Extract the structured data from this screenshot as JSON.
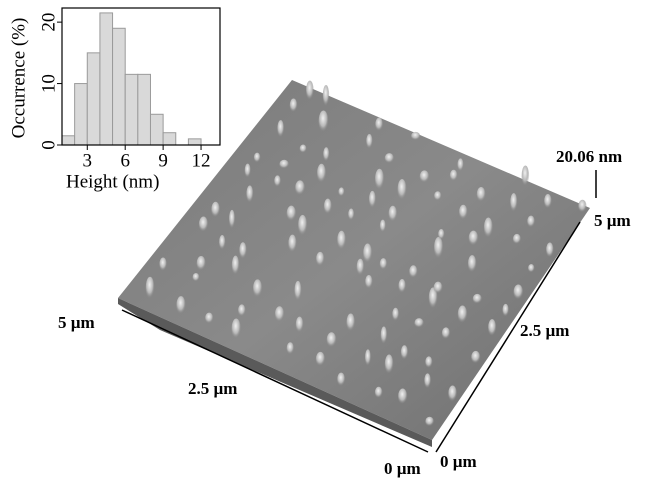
{
  "chart_data": {
    "type": "histogram",
    "bins": [
      1,
      2,
      3,
      4,
      5,
      6,
      7,
      8,
      9,
      10,
      11,
      12,
      13
    ],
    "values": [
      1.5,
      10,
      15,
      21.5,
      19,
      11.5,
      11.5,
      5,
      2,
      0,
      1,
      0
    ],
    "color": "#d9d9d9",
    "xlabel": "Height (nm)",
    "ylabel": "Occurrence (%)",
    "xlim": [
      1,
      13.5
    ],
    "xticks": [
      3,
      6,
      9,
      12
    ],
    "ylim": [
      0,
      22.3
    ],
    "yticks": [
      0,
      10,
      20
    ]
  },
  "afm_image": {
    "z_label": "20.06 nm",
    "front_axis_labels": [
      "5 µm",
      "2.5 µm",
      "0 µm"
    ],
    "right_axis_labels": [
      "0 µm",
      "2.5 µm",
      "5 µm"
    ]
  }
}
